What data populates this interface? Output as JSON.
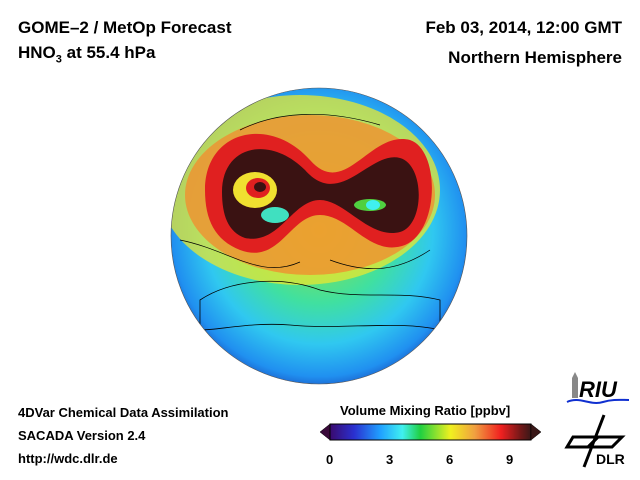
{
  "header": {
    "title_line1": "GOME–2 / MetOp Forecast",
    "title_line2_species": "HNO",
    "title_line2_sub": "3",
    "title_line2_rest": " at 55.4 hPa",
    "date": "Feb 03, 2014, 12:00 GMT",
    "region": "Northern Hemisphere"
  },
  "footer": {
    "line1": "4DVar Chemical Data Assimilation",
    "line2": "SACADA Version 2.4",
    "line3": "http://wdc.dlr.de"
  },
  "colorbar": {
    "label": "Volume Mixing Ratio [ppbv]",
    "min": 0,
    "max": 10,
    "ticks": [
      "0",
      "3",
      "6",
      "9"
    ],
    "colors": [
      "#3a0a6e",
      "#2040e0",
      "#20a0ff",
      "#40f0f0",
      "#20d040",
      "#f0f020",
      "#f0a040",
      "#f02020",
      "#701818",
      "#3a1818"
    ]
  },
  "logos": {
    "riu": "RIU",
    "dlr": "DLR"
  }
}
